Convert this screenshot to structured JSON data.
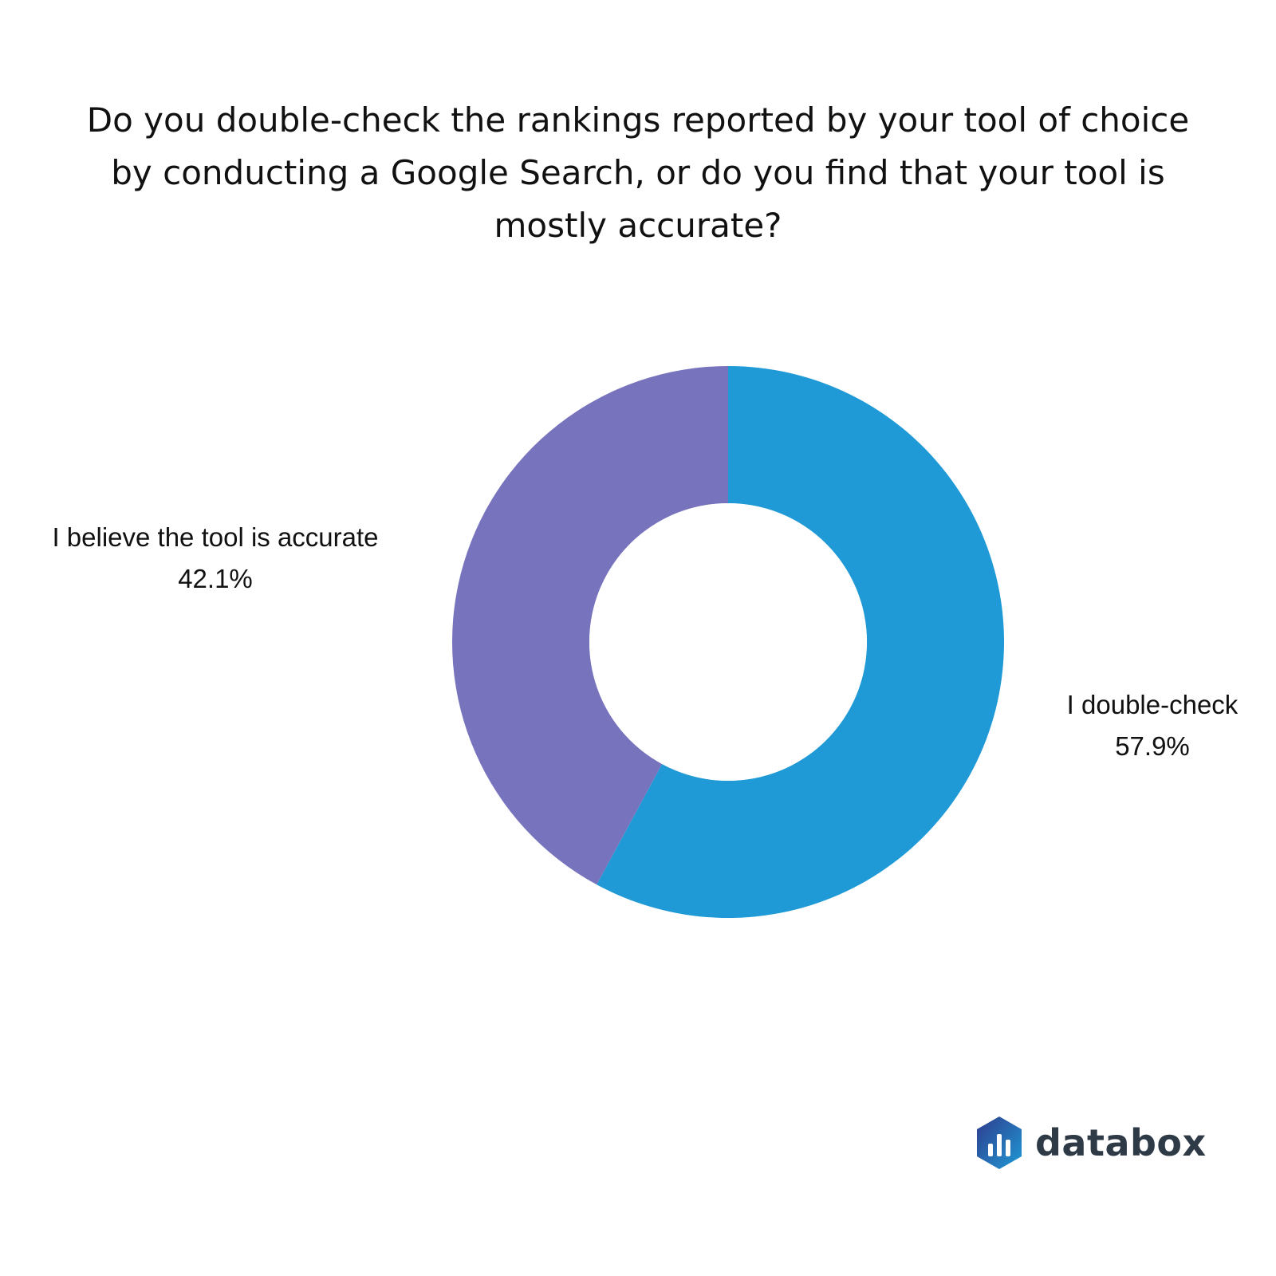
{
  "chart_data": {
    "type": "pie",
    "variant": "donut",
    "title": "Do you double-check the rankings reported by your tool of choice by conducting a Google Search, or do you find that your tool is mostly accurate?",
    "slices": [
      {
        "label": "I double-check",
        "value": 57.9,
        "value_label": "57.9%",
        "color": "#1f9ad6"
      },
      {
        "label": "I believe the tool is accurate",
        "value": 42.1,
        "value_label": "42.1%",
        "color": "#7773bd"
      }
    ],
    "start_angle": "12 o'clock",
    "direction": "clockwise"
  },
  "brand": {
    "name": "databox",
    "logo_icon": "databox-logo-icon",
    "logo_colors": [
      "#2f3b8c",
      "#1f9ad6"
    ]
  }
}
